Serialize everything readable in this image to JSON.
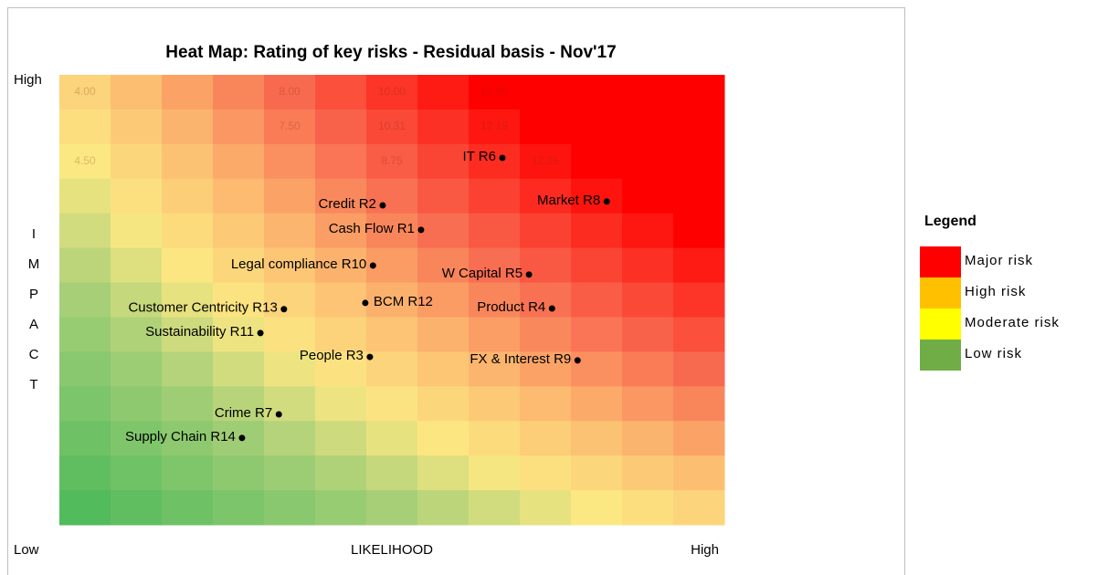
{
  "chart_data": {
    "type": "scatter",
    "title": "Heat Map: Rating of key risks - Residual basis - Nov'17",
    "x_label": "LIKELIHOOD",
    "y_label": "IMPACT",
    "xlim": [
      0,
      13
    ],
    "ylim": [
      0,
      13
    ],
    "xticks": [
      {
        "value": 0,
        "label": "Low"
      },
      {
        "value": 13,
        "label": "High"
      }
    ],
    "yticks": [
      {
        "value": 13,
        "label": "High"
      }
    ],
    "heatmap": {
      "z": [
        [
          12,
          14,
          16,
          18,
          20,
          22,
          24,
          26,
          28,
          30,
          32,
          34,
          36
        ],
        [
          11,
          12.9,
          14.8,
          16.8,
          18.7,
          20.6,
          22.5,
          24.4,
          26.3,
          28.3,
          30.2,
          32.1,
          34
        ],
        [
          10,
          11.8,
          13.7,
          15.5,
          17.3,
          19.2,
          21,
          22.8,
          24.7,
          26.5,
          28.3,
          30.2,
          32
        ],
        [
          9,
          10.8,
          12.5,
          14.3,
          16,
          17.8,
          19.5,
          21.3,
          23,
          24.8,
          26.5,
          28.3,
          30
        ],
        [
          8,
          9.7,
          11.3,
          13,
          14.7,
          16.3,
          18,
          19.7,
          21.3,
          23,
          24.7,
          26.3,
          28
        ],
        [
          7,
          8.6,
          10.2,
          11.8,
          13.3,
          14.9,
          16.5,
          18.1,
          19.7,
          21.3,
          22.8,
          24.4,
          26
        ],
        [
          6,
          7.5,
          9,
          10.5,
          12,
          13.5,
          15,
          16.5,
          18,
          19.5,
          21,
          22.5,
          24
        ],
        [
          5,
          6.4,
          7.8,
          9.3,
          10.7,
          12.1,
          13.5,
          14.9,
          16.3,
          17.8,
          19.2,
          20.6,
          22
        ],
        [
          4,
          5.3,
          6.7,
          8,
          9.3,
          10.7,
          12,
          13.3,
          14.7,
          16,
          17.3,
          18.7,
          20
        ],
        [
          3,
          4.3,
          5.5,
          6.8,
          8,
          9.3,
          10.5,
          11.8,
          13,
          14.3,
          15.5,
          16.8,
          18
        ],
        [
          2,
          3.2,
          4.3,
          5.5,
          6.7,
          7.8,
          9,
          10.2,
          11.3,
          12.5,
          13.7,
          14.8,
          16
        ],
        [
          1,
          2.1,
          3.2,
          4.3,
          5.3,
          6.4,
          7.5,
          8.6,
          9.7,
          10.8,
          11.8,
          12.9,
          14
        ],
        [
          0,
          1,
          2,
          3,
          4,
          5,
          6,
          7,
          8,
          9,
          10,
          11,
          12
        ]
      ],
      "colorscale": [
        [
          0,
          "#52bb5c"
        ],
        [
          6,
          "#a6cf78"
        ],
        [
          10,
          "#fce883"
        ],
        [
          14,
          "#fcbf72"
        ],
        [
          20,
          "#f86a50"
        ],
        [
          28,
          "#ff0000"
        ]
      ],
      "cell_labels": [
        {
          "row": 0,
          "col": 0,
          "text": "4.00"
        },
        {
          "row": 0,
          "col": 4,
          "text": "8.00"
        },
        {
          "row": 0,
          "col": 6,
          "text": "10.00"
        },
        {
          "row": 0,
          "col": 8,
          "text": "12.00"
        },
        {
          "row": 1,
          "col": 4,
          "text": "7.50"
        },
        {
          "row": 1,
          "col": 6,
          "text": "10.31"
        },
        {
          "row": 1,
          "col": 8,
          "text": "12.19"
        },
        {
          "row": 2,
          "col": 0,
          "text": "4.50"
        },
        {
          "row": 2,
          "col": 6,
          "text": "8.75"
        },
        {
          "row": 2,
          "col": 9,
          "text": "12.25"
        }
      ]
    },
    "points": {
      "names": [
        "IT R6",
        "Credit R2",
        "Cash Flow R1",
        "Market R8",
        "Legal compliance R10",
        "W Capital R5",
        "Customer Centricity R13",
        "BCM R12",
        "Product R4",
        "Sustainability R11",
        "People R3",
        "FX & Interest R9",
        "Crime R7",
        "Supply Chain R14"
      ],
      "x": [
        8.66,
        6.32,
        7.07,
        10.7,
        6.13,
        9.18,
        4.39,
        5.98,
        9.63,
        3.93,
        6.07,
        10.13,
        4.29,
        3.57
      ],
      "y": [
        10.6,
        9.23,
        8.52,
        9.34,
        7.49,
        7.23,
        6.23,
        6.41,
        6.25,
        5.54,
        4.85,
        4.75,
        3.19,
        2.51
      ],
      "color": "#000000"
    },
    "legend": {
      "title": "Legend",
      "items": [
        {
          "name": "Major risk",
          "color": "#ff0000"
        },
        {
          "name": "High risk",
          "color": "#ffc000"
        },
        {
          "name": "Moderate risk",
          "color": "#ffff00"
        },
        {
          "name": "Low risk",
          "color": "#70ad47"
        }
      ]
    }
  }
}
